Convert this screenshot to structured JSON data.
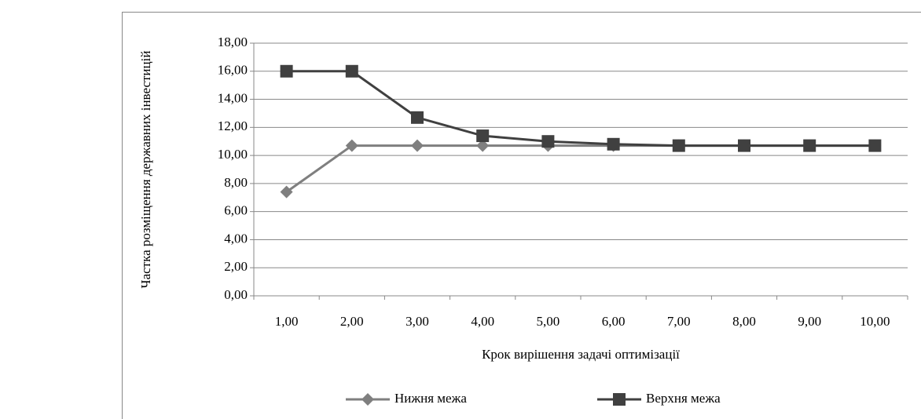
{
  "chart_data": {
    "type": "line",
    "x_label": "Крок вирішення задачі оптимізації",
    "y_label": "Частка розміщення державних інвестицій",
    "categories": [
      "1,00",
      "2,00",
      "3,00",
      "4,00",
      "5,00",
      "6,00",
      "7,00",
      "8,00",
      "9,00",
      "10,00"
    ],
    "series": [
      {
        "name": "Нижня межа",
        "color": "#7f7f7f",
        "marker": "diamond",
        "values": [
          7.4,
          10.7,
          10.7,
          10.7,
          10.7,
          10.7,
          10.7,
          10.7,
          10.7,
          10.7
        ]
      },
      {
        "name": "Верхня межа",
        "color": "#404040",
        "marker": "square",
        "values": [
          16,
          16,
          12.7,
          11.4,
          11.0,
          10.8,
          10.7,
          10.7,
          10.7,
          10.7
        ]
      }
    ],
    "ylim": [
      0,
      18
    ],
    "yticks": [
      {
        "value": 0,
        "label": "0,00"
      },
      {
        "value": 2,
        "label": "2,00"
      },
      {
        "value": 4,
        "label": "4,00"
      },
      {
        "value": 6,
        "label": "6,00"
      },
      {
        "value": 8,
        "label": "8,00"
      },
      {
        "value": 10,
        "label": "10,00"
      },
      {
        "value": 12,
        "label": "12,00"
      },
      {
        "value": 14,
        "label": "14,00"
      },
      {
        "value": 16,
        "label": "16,00"
      },
      {
        "value": 18,
        "label": "18,00"
      }
    ],
    "grid": true,
    "legend": "bottom"
  }
}
